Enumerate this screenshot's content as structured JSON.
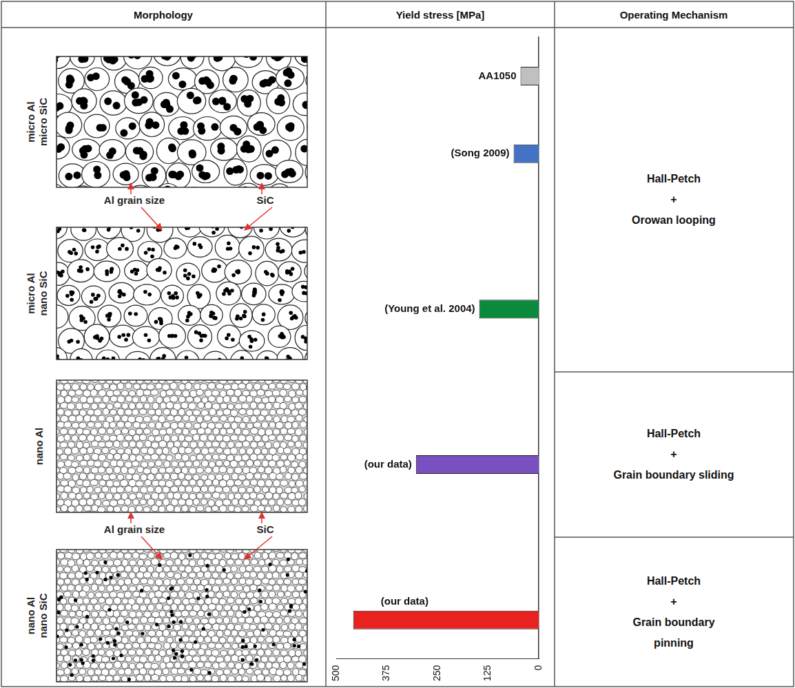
{
  "header": [
    "Morphology",
    "Yield stress [MPa]",
    "Operating Mechanism"
  ],
  "morphology": [
    {
      "label": [
        "micro Al",
        "micro SiC"
      ]
    },
    {
      "label": [
        "micro Al",
        "nano SiC"
      ]
    },
    {
      "label": [
        "nano Al"
      ]
    },
    {
      "label": [
        "nano Al",
        "nano SiC"
      ]
    }
  ],
  "annotations": [
    [
      "Al grain size",
      "SiC"
    ],
    [
      "Al grain size",
      "SiC"
    ]
  ],
  "mechanisms": [
    [
      "Hall-Petch",
      "+",
      "Orowan looping"
    ],
    [
      "Hall-Petch",
      "+",
      "Grain boundary sliding"
    ],
    [
      "Hall-Petch",
      "+",
      "Grain boundary",
      "pinning"
    ]
  ],
  "chart_data": {
    "type": "bar",
    "orientation": "horizontal",
    "categories": [
      "AA1050",
      "(Song 2009)",
      null,
      "(Young et al. 2004)",
      null,
      "(our data)",
      null,
      "(our data)"
    ],
    "values": [
      45,
      62,
      null,
      147,
      null,
      303,
      null,
      458
    ],
    "colors": [
      "#c0c0c0",
      "#4472c4",
      null,
      "#0a8a3c",
      null,
      "#7a4fbf",
      null,
      "#e8231f"
    ],
    "xlim": [
      0,
      500
    ],
    "xticks": [
      0,
      125,
      250,
      375,
      500
    ],
    "tick_labels": "x",
    "grid": false
  }
}
